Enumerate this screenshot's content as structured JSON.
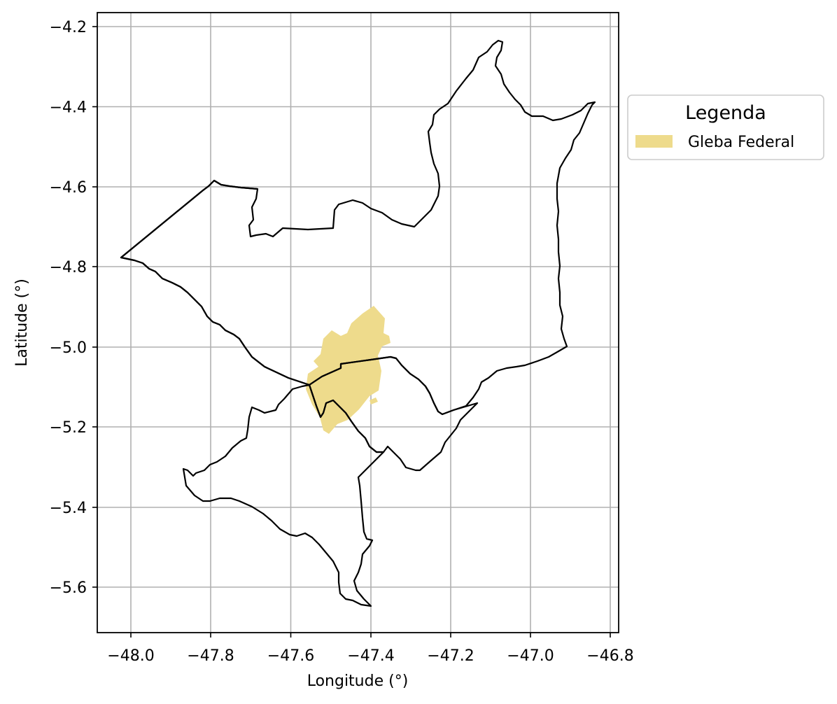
{
  "map": {
    "xlabel": "Longitude (°)",
    "ylabel": "Latitude (°)",
    "xlim": [
      -48.085,
      -46.785
    ],
    "ylim": [
      -5.715,
      -4.165
    ],
    "grid": true,
    "x_ticks": [
      -48.0,
      -47.8,
      -47.6,
      -47.4,
      -47.2,
      -47.0,
      -46.8
    ],
    "y_ticks": [
      -4.2,
      -4.4,
      -4.6,
      -4.8,
      -5.0,
      -5.2,
      -5.4,
      -5.6
    ],
    "x_tick_labels": [
      "−48.0",
      "−47.8",
      "−47.6",
      "−47.4",
      "−47.2",
      "−47.0",
      "−46.8"
    ],
    "y_tick_labels": [
      "−4.2",
      "−4.4",
      "−4.6",
      "−4.8",
      "−5.0",
      "−5.2",
      "−5.4",
      "−5.6"
    ],
    "legend": {
      "title": "Legenda",
      "placement": "outside-right-top",
      "items": [
        {
          "label": "Gleba Federal",
          "color": "#eedb8c"
        }
      ]
    },
    "colors": {
      "boundary": "#000000",
      "gleba_fill": "#eedb8c",
      "grid": "#b0b0b0"
    }
  }
}
